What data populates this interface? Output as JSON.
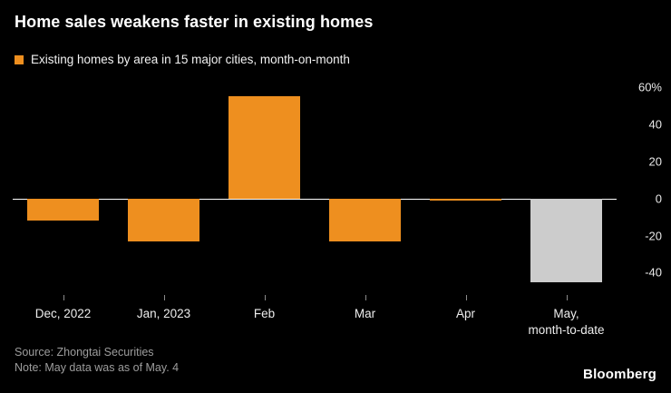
{
  "header": {
    "title": "Home sales weakens faster in existing homes"
  },
  "legend": {
    "label": "Existing homes by area in 15 major cities, month-on-month",
    "swatch_color": "#EE8F1F"
  },
  "chart_data": {
    "type": "bar",
    "title": "Home sales weakens faster in existing homes",
    "series_name": "Existing homes by area in 15 major cities, month-on-month",
    "categories": [
      "Dec, 2022",
      "Jan, 2023",
      "Feb",
      "Mar",
      "Apr",
      "May,\nmonth-to-date"
    ],
    "values": [
      -12,
      -23,
      55,
      -23,
      -1,
      -45
    ],
    "bar_colors": [
      "#EE8F1F",
      "#EE8F1F",
      "#EE8F1F",
      "#EE8F1F",
      "#EE8F1F",
      "#CCCCCC"
    ],
    "unit": "%",
    "yticks": [
      60,
      40,
      20,
      0,
      -20,
      -40
    ],
    "ytick_labels": [
      "60%",
      "40",
      "20",
      "0",
      "-20",
      "-40"
    ],
    "ylim": [
      -52,
      62
    ],
    "zero_line": true,
    "grid": false,
    "legend_position": "top-left",
    "yaxis_side": "right"
  },
  "footer": {
    "source": "Source: Zhongtai Securities",
    "note": "Note: May data was as of May. 4",
    "brand": "Bloomberg"
  }
}
